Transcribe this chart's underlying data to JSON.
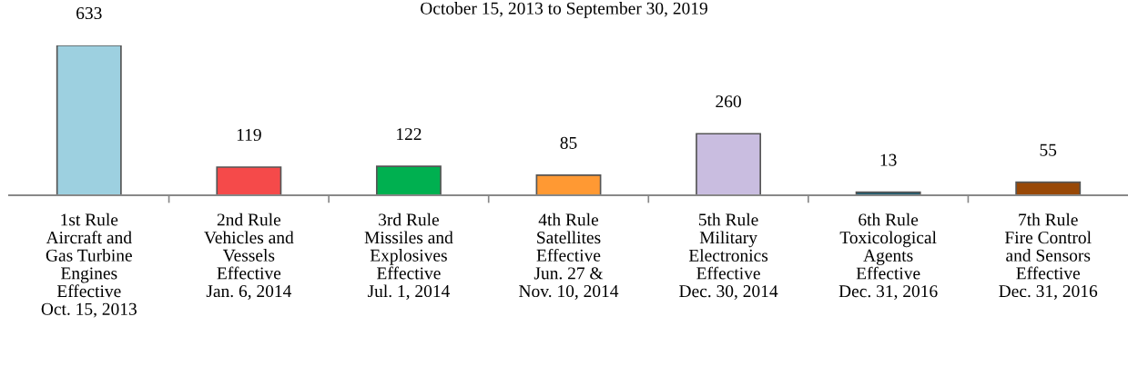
{
  "chart_data": {
    "type": "bar",
    "title": "October 15, 2013 to September 30, 2019",
    "categories": [
      "1st Rule\nAircraft and\nGas Turbine\nEngines\nEffective\nOct. 15, 2013",
      "2nd Rule\nVehicles and\nVessels\nEffective\nJan. 6, 2014",
      "3rd Rule\nMissiles and\nExplosives\nEffective\nJul. 1, 2014",
      "4th Rule\nSatellites\nEffective\nJun. 27 &\nNov. 10, 2014",
      "5th Rule\nMilitary\nElectronics\nEffective\nDec. 30, 2014",
      "6th Rule\nToxicological\nAgents\nEffective\nDec. 31, 2016",
      "7th Rule\nFire Control\nand Sensors\nEffective\nDec. 31, 2016"
    ],
    "values": [
      633,
      119,
      122,
      85,
      260,
      13,
      55
    ],
    "colors": [
      "#9dd0e0",
      "#f54a4a",
      "#00b050",
      "#ff9933",
      "#c9bde0",
      "#215f73",
      "#984806"
    ],
    "data_labels": true,
    "grid": false,
    "legend": false
  }
}
